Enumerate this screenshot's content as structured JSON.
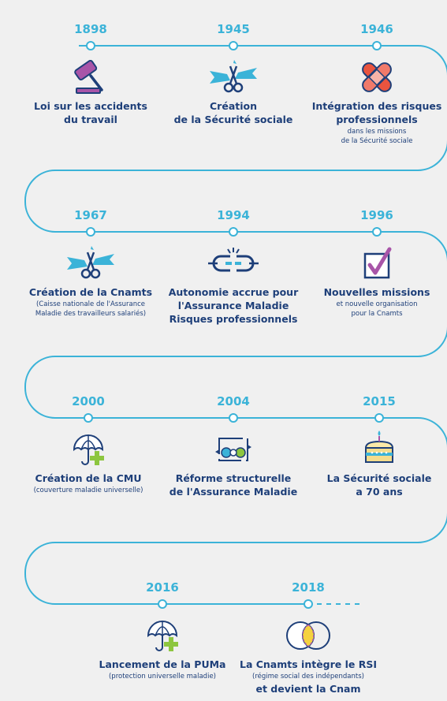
{
  "events": [
    {
      "year": "1898",
      "title": [
        "Loi sur les accidents",
        "du travail"
      ],
      "note": [],
      "icon": "gavel-icon"
    },
    {
      "year": "1945",
      "title": [
        "Création",
        "de la Sécurité sociale"
      ],
      "note": [],
      "icon": "ribbon-scissors-icon"
    },
    {
      "year": "1946",
      "title": [
        "Intégration des risques",
        "professionnels"
      ],
      "note": [
        "dans les missions",
        "de la Sécurité sociale"
      ],
      "icon": "bandage-icon"
    },
    {
      "year": "1967",
      "title": [
        "Création de la Cnamts"
      ],
      "note": [
        "(Caisse nationale de l'Assurance",
        "Maladie des travailleurs salariés)"
      ],
      "icon": "ribbon-scissors-icon"
    },
    {
      "year": "1994",
      "title": [
        "Autonomie accrue pour",
        "l'Assurance Maladie",
        "Risques professionnels"
      ],
      "note": [],
      "icon": "broken-chain-icon"
    },
    {
      "year": "1996",
      "title": [
        "Nouvelles missions"
      ],
      "note": [
        "et nouvelle organisation",
        "pour la Cnamts"
      ],
      "icon": "checkbox-icon"
    },
    {
      "year": "2000",
      "title": [
        "Création de la CMU"
      ],
      "note": [
        "(couverture maladie universelle)"
      ],
      "icon": "umbrella-cross-icon"
    },
    {
      "year": "2004",
      "title": [
        "Réforme structurelle",
        "de l'Assurance Maladie"
      ],
      "note": [],
      "icon": "reform-cycle-icon"
    },
    {
      "year": "2015",
      "title": [
        "La Sécurité sociale",
        "a 70 ans"
      ],
      "note": [],
      "icon": "birthday-cake-icon"
    },
    {
      "year": "2016",
      "title": [
        "Lancement de la PUMa"
      ],
      "note": [
        "(protection universelle maladie)"
      ],
      "icon": "umbrella-cross-icon"
    },
    {
      "year": "2018",
      "title": [
        "La Cnamts intègre le RSI"
      ],
      "note": [
        "(régime social des indépendants)"
      ],
      "title2": "et devient la Cnam",
      "icon": "merge-circles-icon"
    }
  ],
  "colors": {
    "line": "#3bb3d8",
    "title": "#1e3f79",
    "accent": "#a855a8",
    "green": "#8dc63f",
    "background": "#f0f0f0"
  }
}
